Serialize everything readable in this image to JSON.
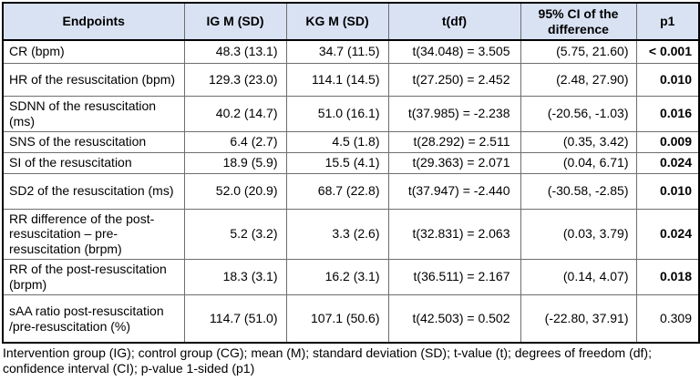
{
  "colors": {
    "header_background": "#d9e2f3",
    "grid_line": "#6e6e6e",
    "outer_border": "#000000",
    "text": "#000000"
  },
  "table": {
    "columns": [
      "Endpoints",
      "IG M (SD)",
      "KG M (SD)",
      "t(df)",
      "95% CI of the difference",
      "p1"
    ],
    "rows": [
      {
        "endpoint": "CR (bpm)",
        "ig": "48.3 (13.1)",
        "kg": "34.7 (11.5)",
        "t": "t(34.048) = 3.505",
        "ci": "(5.75, 21.60)",
        "p": "< 0.001"
      },
      {
        "endpoint": "HR of the resuscitation (bpm)",
        "ig": "129.3 (23.0)",
        "kg": "114.1 (14.5)",
        "t": "t(27.250) = 2.452",
        "ci": "(2.48, 27.90)",
        "p": "0.010"
      },
      {
        "endpoint": "SDNN of the resuscitation (ms)",
        "ig": "40.2 (14.7)",
        "kg": "51.0 (16.1)",
        "t": "t(37.985) = -2.238",
        "ci": "(-20.56, -1.03)",
        "p": "0.016"
      },
      {
        "endpoint": "SNS of the resuscitation",
        "ig": "6.4 (2.7)",
        "kg": "4.5 (1.8)",
        "t": "t(28.292) = 2.511",
        "ci": "(0.35, 3.42)",
        "p": "0.009"
      },
      {
        "endpoint": "SI of the resuscitation",
        "ig": "18.9 (5.9)",
        "kg": "15.5 (4.1)",
        "t": "t(29.363) = 2.071",
        "ci": "(0.04, 6.71)",
        "p": "0.024"
      },
      {
        "endpoint": "SD2 of the resuscitation (ms)",
        "ig": "52.0 (20.9)",
        "kg": "68.7 (22.8)",
        "t": "t(37.947) = -2.440",
        "ci": "(-30.58, -2.85)",
        "p": "0.010"
      },
      {
        "endpoint": "RR difference of the post-resuscitation – pre-resuscitation (brpm)",
        "ig": "5.2 (3.2)",
        "kg": "3.3 (2.6)",
        "t": "t(32.831) = 2.063",
        "ci": "(0.03, 3.79)",
        "p": "0.024"
      },
      {
        "endpoint": "RR of the post-resuscitation (brpm)",
        "ig": "18.3 (3.1)",
        "kg": "16.2 (3.1)",
        "t": "t(36.511) = 2.167",
        "ci": "(0.14, 4.07)",
        "p": "0.018"
      },
      {
        "endpoint": "sAA ratio post-resuscitation /pre-resuscitation (%)",
        "ig": "114.7 (51.0)",
        "kg": "107.1 (50.6)",
        "t": "t(42.503) = 0.502",
        "ci": "(-22.80, 37.91)",
        "p": "0.309"
      }
    ]
  },
  "footnote": "Intervention group (IG); control group (CG); mean (M); standard deviation (SD); t-value (t); degrees of freedom (df); confidence interval (CI); p-value 1-sided (p1)"
}
